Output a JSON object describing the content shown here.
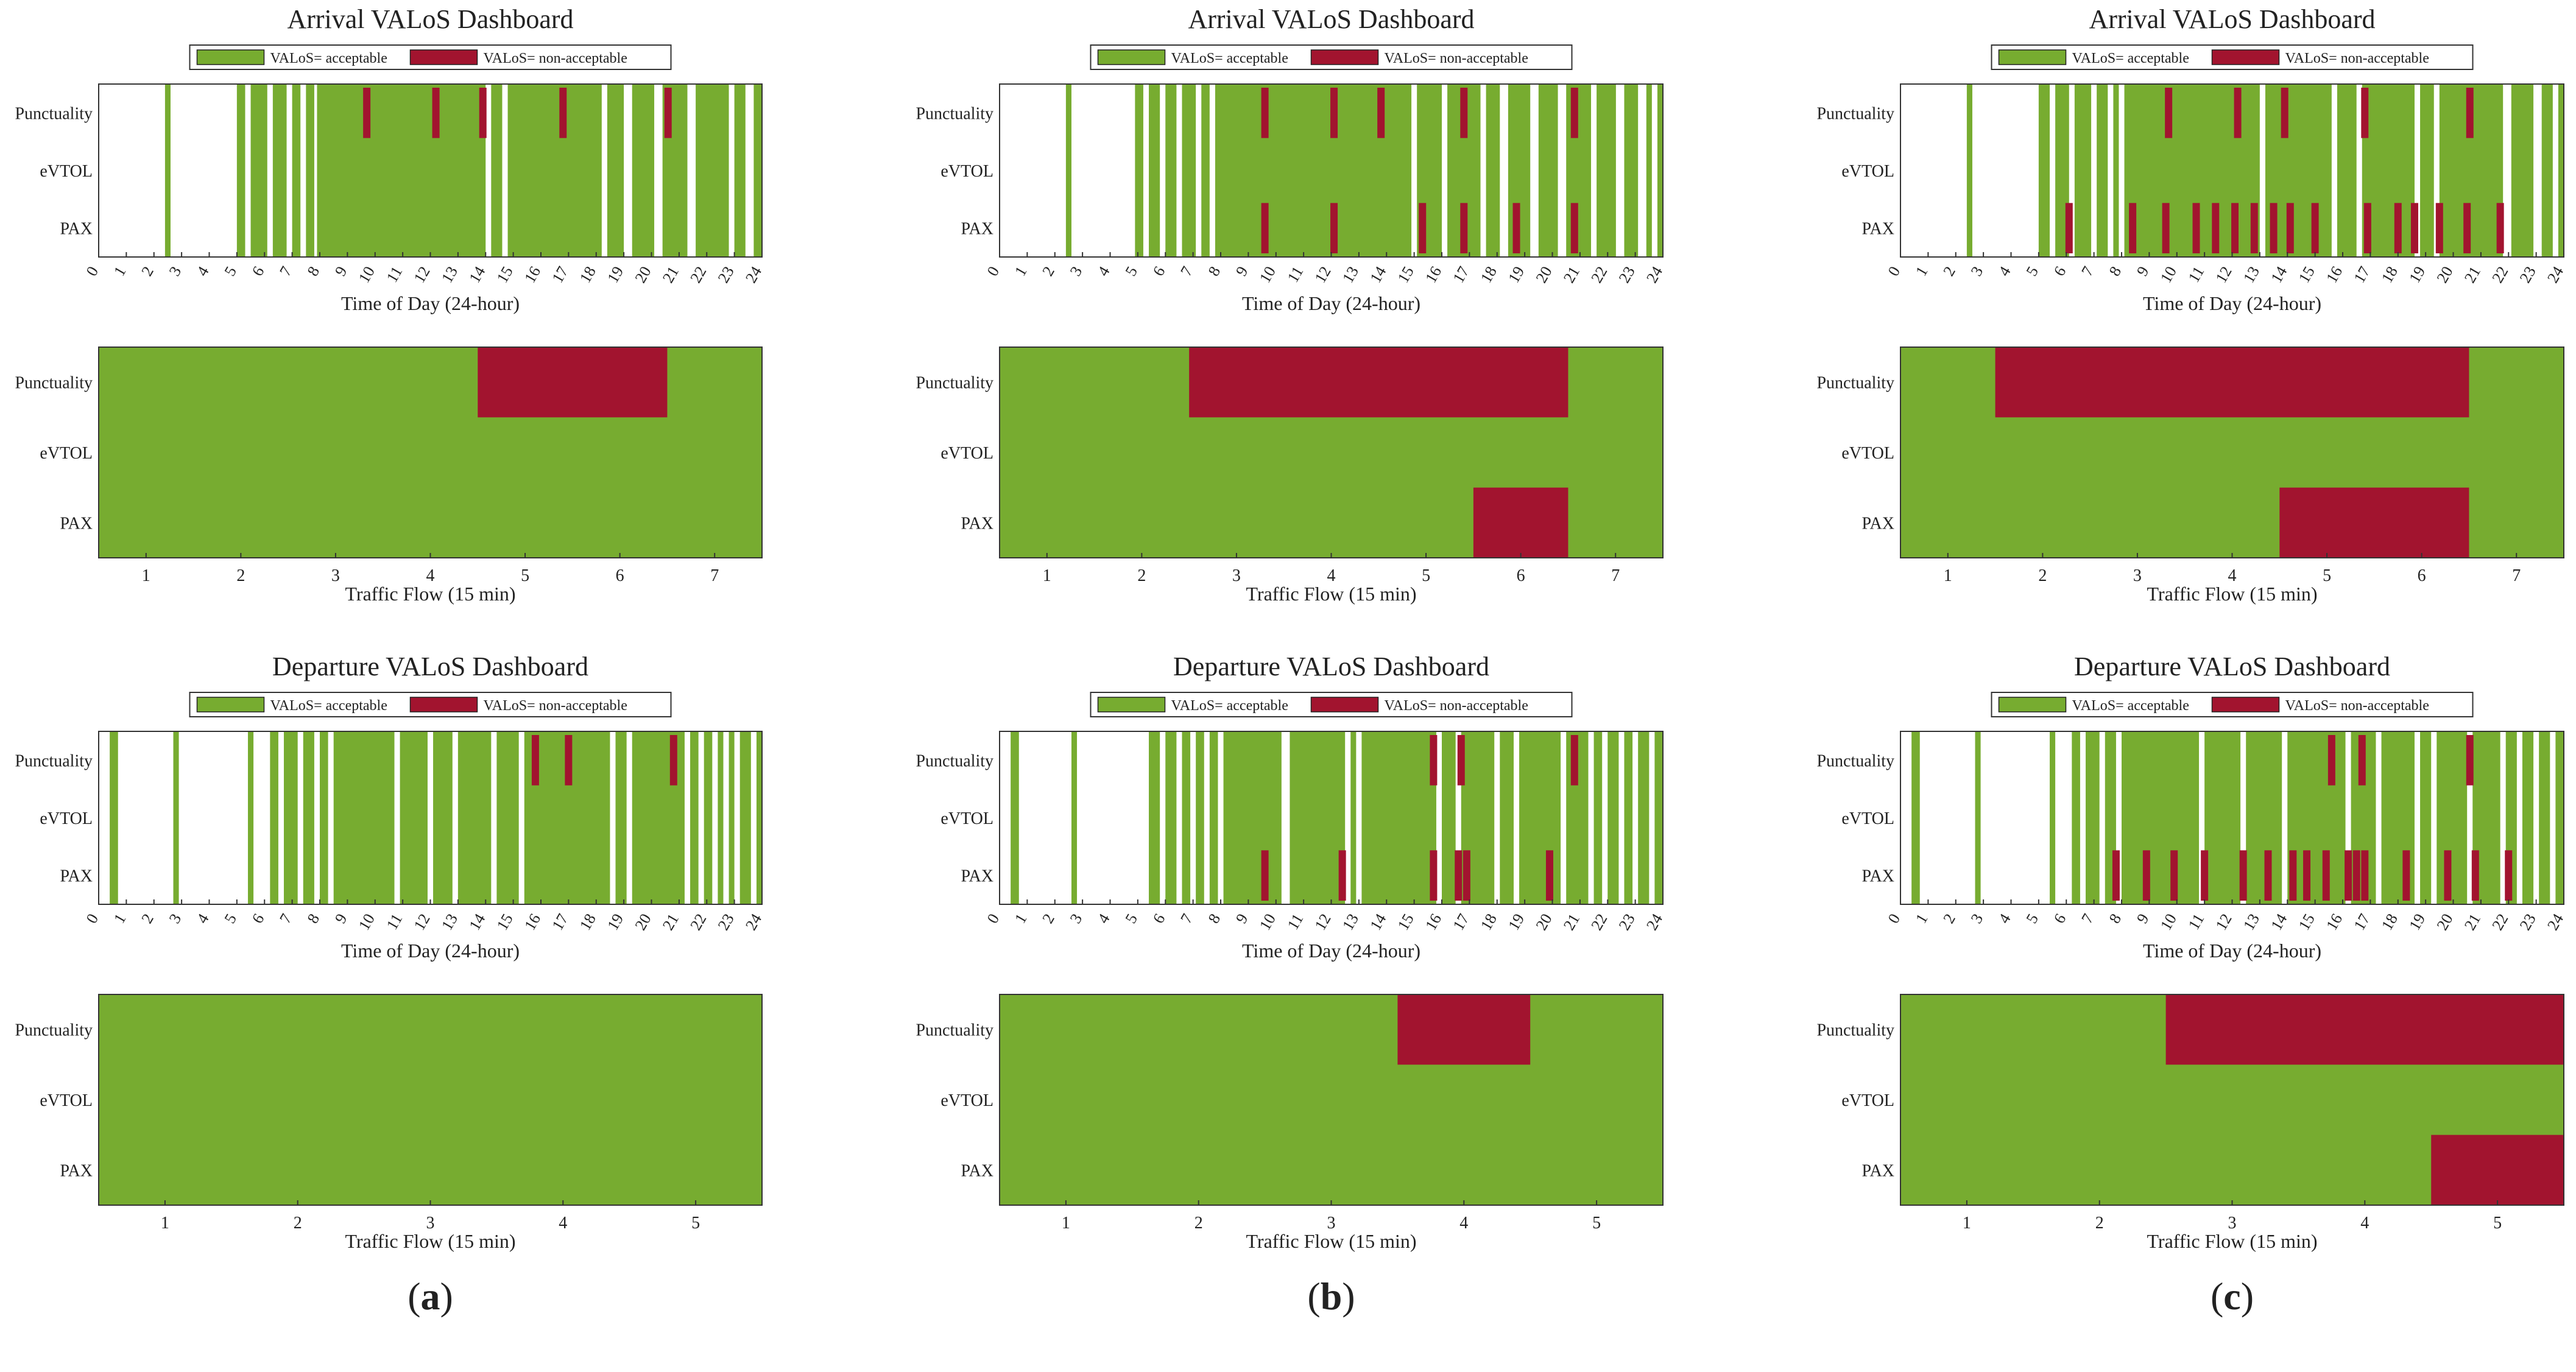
{
  "colors": {
    "acceptable": "#77AC30",
    "non_acceptable": "#A2142F",
    "axis": "#333333"
  },
  "legend": {
    "acceptable": "VALoS= acceptable",
    "non_acceptable": "VALoS= non-acceptable"
  },
  "rows": [
    "Punctuality",
    "eVTOL",
    "PAX"
  ],
  "hour_ticks": [
    "0",
    "1",
    "2",
    "3",
    "4",
    "5",
    "6",
    "7",
    "8",
    "9",
    "10",
    "11",
    "12",
    "13",
    "14",
    "15",
    "16",
    "17",
    "18",
    "19",
    "20",
    "21",
    "22",
    "23",
    "24"
  ],
  "labels": {
    "arrival_title": "Arrival VALoS Dashboard",
    "departure_title": "Departure VALoS Dashboard",
    "time_xlabel": "Time of Day (24-hour)",
    "flow_xlabel": "Traffic Flow (15 min)"
  },
  "columns": [
    "(a)",
    "(b)",
    "(c)"
  ],
  "chart_data": [
    {
      "type": "heatmap",
      "column": "(a)",
      "title": "Arrival VALoS Dashboard",
      "xlabel": "Time of Day (24-hour)",
      "xlim": [
        0,
        24
      ],
      "green_intervals": [
        [
          2.4,
          2.6
        ],
        [
          5.0,
          5.3
        ],
        [
          5.5,
          6.1
        ],
        [
          6.3,
          6.8
        ],
        [
          7.0,
          7.3
        ],
        [
          7.5,
          7.8
        ],
        [
          7.9,
          14.0
        ],
        [
          14.2,
          14.6
        ],
        [
          14.8,
          18.2
        ],
        [
          18.4,
          19.0
        ],
        [
          19.3,
          20.1
        ],
        [
          20.4,
          21.3
        ],
        [
          21.6,
          22.8
        ],
        [
          23.0,
          23.4
        ],
        [
          23.7,
          24.0
        ]
      ],
      "red_ticks": {
        "Punctuality": [
          9.7,
          12.2,
          13.9,
          16.8,
          20.6
        ],
        "eVTOL": [],
        "PAX": []
      }
    },
    {
      "type": "heatmap",
      "column": "(a)",
      "xlabel": "Traffic Flow (15 min)",
      "categories": [
        "1",
        "2",
        "3",
        "4",
        "5",
        "6",
        "7"
      ],
      "red_ranges": {
        "Punctuality": [
          [
            5,
            6
          ]
        ],
        "eVTOL": [],
        "PAX": []
      }
    },
    {
      "type": "heatmap",
      "column": "(b)",
      "title": "Arrival VALoS Dashboard",
      "xlabel": "Time of Day (24-hour)",
      "xlim": [
        0,
        24
      ],
      "green_intervals": [
        [
          2.4,
          2.6
        ],
        [
          4.9,
          5.2
        ],
        [
          5.4,
          5.8
        ],
        [
          6.0,
          6.4
        ],
        [
          6.6,
          7.1
        ],
        [
          7.3,
          7.6
        ],
        [
          7.8,
          14.9
        ],
        [
          15.1,
          16.0
        ],
        [
          16.2,
          17.4
        ],
        [
          17.6,
          18.1
        ],
        [
          18.4,
          19.2
        ],
        [
          19.5,
          20.2
        ],
        [
          20.5,
          21.4
        ],
        [
          21.6,
          22.3
        ],
        [
          22.6,
          23.1
        ],
        [
          23.4,
          23.6
        ],
        [
          23.8,
          24.0
        ]
      ],
      "red_ticks": {
        "Punctuality": [
          9.6,
          12.1,
          13.8,
          16.8,
          20.8
        ],
        "eVTOL": [],
        "PAX": [
          9.6,
          12.1,
          15.3,
          16.8,
          18.7,
          20.8
        ]
      }
    },
    {
      "type": "heatmap",
      "column": "(b)",
      "xlabel": "Traffic Flow (15 min)",
      "categories": [
        "1",
        "2",
        "3",
        "4",
        "5",
        "6",
        "7"
      ],
      "red_ranges": {
        "Punctuality": [
          [
            3,
            6
          ]
        ],
        "eVTOL": [],
        "PAX": [
          [
            6,
            6
          ]
        ]
      }
    },
    {
      "type": "heatmap",
      "column": "(c)",
      "title": "Arrival VALoS Dashboard",
      "xlabel": "Time of Day (24-hour)",
      "xlim": [
        0,
        24
      ],
      "green_intervals": [
        [
          2.4,
          2.6
        ],
        [
          5.0,
          5.4
        ],
        [
          5.6,
          6.1
        ],
        [
          6.3,
          6.9
        ],
        [
          7.1,
          7.5
        ],
        [
          7.7,
          7.9
        ],
        [
          8.1,
          13.0
        ],
        [
          13.2,
          15.6
        ],
        [
          15.8,
          16.5
        ],
        [
          16.7,
          18.6
        ],
        [
          18.8,
          19.3
        ],
        [
          19.5,
          21.8
        ],
        [
          22.1,
          22.9
        ],
        [
          23.2,
          23.6
        ],
        [
          23.8,
          24.0
        ]
      ],
      "red_ticks": {
        "Punctuality": [
          9.7,
          12.2,
          13.9,
          16.8,
          20.6
        ],
        "eVTOL": [],
        "PAX": [
          6.1,
          8.4,
          9.6,
          10.7,
          11.4,
          12.1,
          12.8,
          13.5,
          14.1,
          15.0,
          16.9,
          18.0,
          18.6,
          19.5,
          20.5,
          21.7
        ]
      }
    },
    {
      "type": "heatmap",
      "column": "(c)",
      "xlabel": "Traffic Flow (15 min)",
      "categories": [
        "1",
        "2",
        "3",
        "4",
        "5",
        "6",
        "7"
      ],
      "red_ranges": {
        "Punctuality": [
          [
            2,
            6
          ]
        ],
        "eVTOL": [],
        "PAX": [
          [
            5,
            6
          ]
        ]
      }
    },
    {
      "type": "heatmap",
      "column": "(a)",
      "title": "Departure VALoS Dashboard",
      "xlabel": "Time of Day (24-hour)",
      "xlim": [
        0,
        24
      ],
      "green_intervals": [
        [
          0.4,
          0.7
        ],
        [
          2.7,
          2.9
        ],
        [
          5.4,
          5.6
        ],
        [
          6.2,
          6.5
        ],
        [
          6.7,
          7.2
        ],
        [
          7.4,
          7.8
        ],
        [
          8.0,
          8.3
        ],
        [
          8.5,
          10.7
        ],
        [
          10.9,
          11.9
        ],
        [
          12.1,
          12.8
        ],
        [
          13.0,
          14.2
        ],
        [
          14.4,
          15.2
        ],
        [
          15.4,
          18.5
        ],
        [
          18.7,
          19.1
        ],
        [
          19.3,
          21.2
        ],
        [
          21.4,
          21.7
        ],
        [
          21.9,
          22.2
        ],
        [
          22.4,
          22.6
        ],
        [
          22.8,
          23.0
        ],
        [
          23.2,
          23.6
        ],
        [
          23.8,
          24.0
        ]
      ],
      "red_ticks": {
        "Punctuality": [
          15.8,
          17.0,
          20.8
        ],
        "eVTOL": [],
        "PAX": []
      }
    },
    {
      "type": "heatmap",
      "column": "(a)",
      "xlabel": "Traffic Flow (15 min)",
      "categories": [
        "1",
        "2",
        "3",
        "4",
        "5"
      ],
      "red_ranges": {
        "Punctuality": [],
        "eVTOL": [],
        "PAX": []
      }
    },
    {
      "type": "heatmap",
      "column": "(b)",
      "title": "Departure VALoS Dashboard",
      "xlabel": "Time of Day (24-hour)",
      "xlim": [
        0,
        24
      ],
      "green_intervals": [
        [
          0.4,
          0.7
        ],
        [
          2.6,
          2.8
        ],
        [
          5.4,
          5.8
        ],
        [
          6.0,
          6.4
        ],
        [
          6.6,
          6.9
        ],
        [
          7.1,
          7.4
        ],
        [
          7.6,
          7.9
        ],
        [
          8.1,
          10.2
        ],
        [
          10.5,
          12.5
        ],
        [
          12.7,
          12.9
        ],
        [
          13.1,
          15.8
        ],
        [
          16.0,
          16.5
        ],
        [
          16.7,
          17.9
        ],
        [
          18.1,
          18.6
        ],
        [
          18.8,
          20.3
        ],
        [
          20.5,
          21.3
        ],
        [
          21.5,
          21.8
        ],
        [
          22.0,
          22.4
        ],
        [
          22.6,
          22.9
        ],
        [
          23.1,
          23.5
        ],
        [
          23.7,
          24.0
        ]
      ],
      "red_ticks": {
        "Punctuality": [
          15.7,
          16.7,
          20.8
        ],
        "eVTOL": [],
        "PAX": [
          9.6,
          12.4,
          15.7,
          16.6,
          16.9,
          19.9
        ]
      }
    },
    {
      "type": "heatmap",
      "column": "(b)",
      "xlabel": "Traffic Flow (15 min)",
      "categories": [
        "1",
        "2",
        "3",
        "4",
        "5"
      ],
      "red_ranges": {
        "Punctuality": [
          [
            4,
            4
          ]
        ],
        "eVTOL": [],
        "PAX": []
      }
    },
    {
      "type": "heatmap",
      "column": "(c)",
      "title": "Departure VALoS Dashboard",
      "xlabel": "Time of Day (24-hour)",
      "xlim": [
        0,
        24
      ],
      "green_intervals": [
        [
          0.4,
          0.7
        ],
        [
          2.7,
          2.9
        ],
        [
          5.4,
          5.6
        ],
        [
          6.2,
          6.5
        ],
        [
          6.7,
          7.2
        ],
        [
          7.4,
          7.8
        ],
        [
          8.0,
          10.8
        ],
        [
          11.0,
          12.3
        ],
        [
          12.5,
          13.8
        ],
        [
          14.0,
          16.1
        ],
        [
          16.3,
          17.2
        ],
        [
          17.4,
          18.6
        ],
        [
          18.8,
          19.2
        ],
        [
          19.4,
          20.5
        ],
        [
          20.7,
          21.7
        ],
        [
          21.9,
          22.3
        ],
        [
          22.5,
          22.9
        ],
        [
          23.1,
          23.5
        ],
        [
          23.7,
          24.0
        ]
      ],
      "red_ticks": {
        "Punctuality": [
          15.6,
          16.7,
          20.6
        ],
        "eVTOL": [],
        "PAX": [
          7.8,
          8.9,
          9.9,
          11.0,
          12.4,
          13.3,
          14.2,
          14.7,
          15.4,
          16.2,
          16.5,
          16.8,
          18.3,
          19.8,
          20.8,
          22.0
        ]
      }
    },
    {
      "type": "heatmap",
      "column": "(c)",
      "xlabel": "Traffic Flow (15 min)",
      "categories": [
        "1",
        "2",
        "3",
        "4",
        "5"
      ],
      "red_ranges": {
        "Punctuality": [
          [
            3,
            5
          ]
        ],
        "eVTOL": [],
        "PAX": [
          [
            5,
            5
          ]
        ]
      }
    }
  ]
}
